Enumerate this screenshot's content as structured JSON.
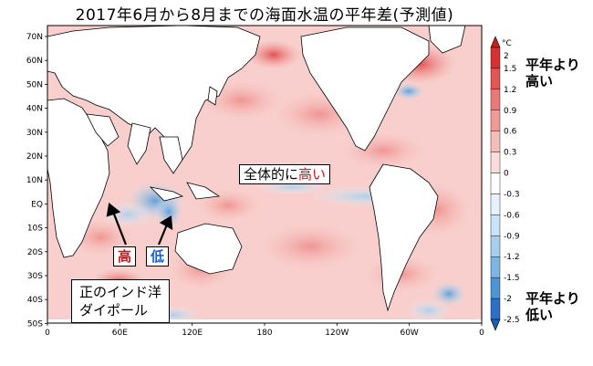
{
  "chart_data": {
    "type": "heatmap",
    "title": "2017年6月から8月までの海面水温の平年差(予測値)",
    "y_ticks": [
      "70N",
      "60N",
      "50N",
      "40N",
      "30N",
      "20N",
      "10N",
      "EQ",
      "10S",
      "20S",
      "30S",
      "40S",
      "50S"
    ],
    "x_ticks": [
      "0",
      "60E",
      "120E",
      "180",
      "120W",
      "60W",
      "0"
    ],
    "colorbar": {
      "unit": "°C",
      "levels": [
        "2",
        "1.5",
        "1.2",
        "0.9",
        "0.6",
        "0.3",
        "0",
        "-0.3",
        "-0.6",
        "-0.9",
        "-1.2",
        "-1.5",
        "-2",
        "-2.5"
      ],
      "colors": [
        "#d83030",
        "#e35555",
        "#ea7a7a",
        "#f09a98",
        "#f6bcb9",
        "#fbdcda",
        "#ffffff",
        "#e6f2fb",
        "#c9e3f6",
        "#a6cfee",
        "#7db6e4",
        "#4f95d6",
        "#2d6fc4"
      ]
    },
    "annotations": {
      "global_prefix": "全体的に",
      "global_high": "高い",
      "high": "高",
      "low": "低",
      "dipole_line1": "正のインド洋",
      "dipole_line2": "ダイポール"
    },
    "legend_high": [
      "平年より",
      "高い"
    ],
    "legend_low": [
      "平年より",
      "低い"
    ]
  }
}
